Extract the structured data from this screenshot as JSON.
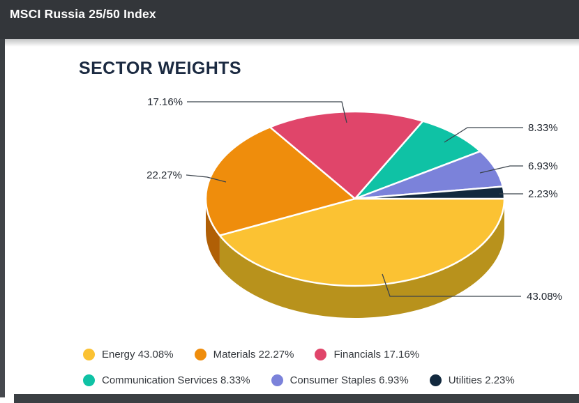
{
  "header": {
    "title": "MSCI Russia 25/50 Index"
  },
  "chart_data": {
    "type": "pie",
    "style": "3d",
    "title": "SECTOR WEIGHTS",
    "unit": "%",
    "legend_position": "bottom",
    "slices": [
      {
        "label": "Energy",
        "value": 43.08,
        "pct_label": "43.08%",
        "color": "#FBC233",
        "side_color": "#B8921C"
      },
      {
        "label": "Materials",
        "value": 22.27,
        "pct_label": "22.27%",
        "color": "#EF8D0C",
        "side_color": "#B05F06"
      },
      {
        "label": "Financials",
        "value": 17.16,
        "pct_label": "17.16%",
        "color": "#E0456A",
        "side_color": null
      },
      {
        "label": "Communication Services",
        "value": 8.33,
        "pct_label": "8.33%",
        "color": "#0FC2A5",
        "side_color": null
      },
      {
        "label": "Consumer Staples",
        "value": 6.93,
        "pct_label": "6.93%",
        "color": "#7B82DA",
        "side_color": null
      },
      {
        "label": "Utilities",
        "value": 2.23,
        "pct_label": "2.23%",
        "color": "#12293E",
        "side_color": null
      }
    ]
  },
  "colors": {
    "header_bg": "#33363A",
    "title_text": "#1B2A41",
    "callout_line": "#3B434C",
    "label_text": "#1D232C",
    "legend_text": "#34383D"
  }
}
